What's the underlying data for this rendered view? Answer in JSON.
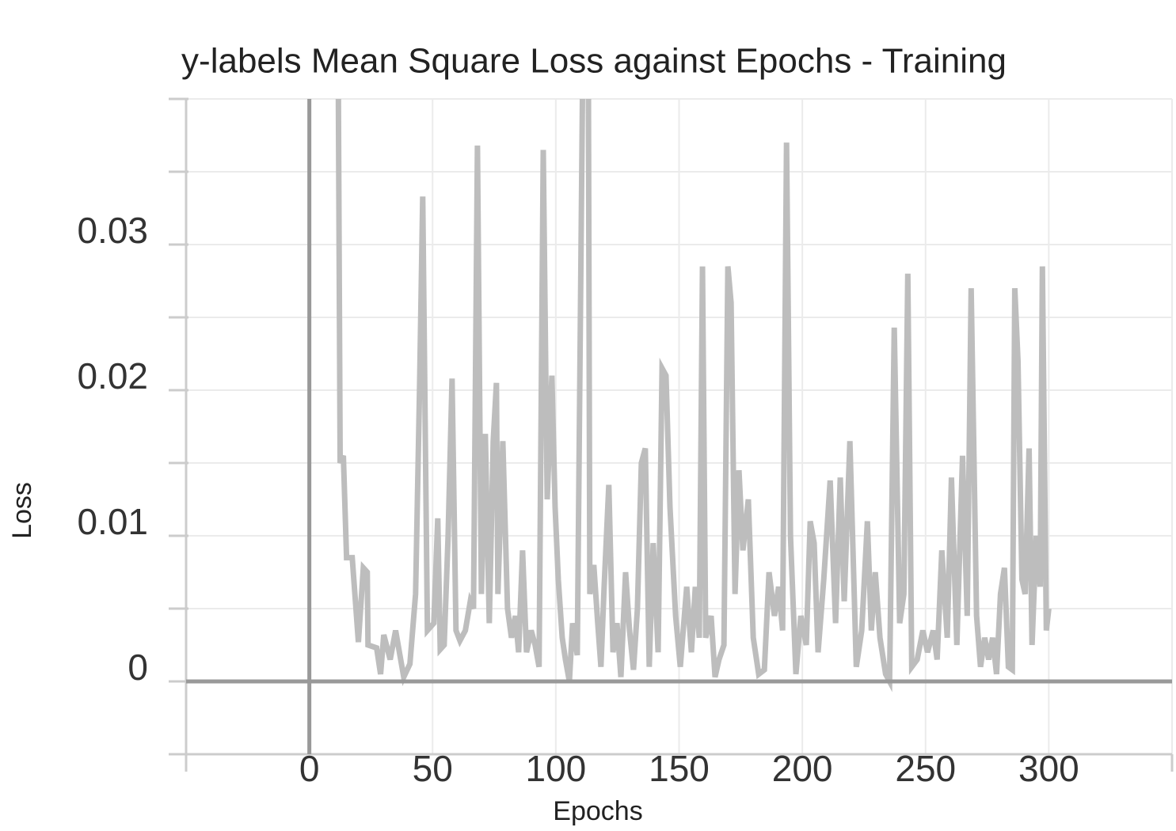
{
  "chart_data": {
    "type": "line",
    "title": "y-labels Mean Square Loss against Epochs - Training",
    "xlabel": "Epochs",
    "ylabel": "Loss",
    "color": "#bdbdbd",
    "grid": true,
    "zero_lines": true,
    "xlim": [
      -50,
      350
    ],
    "xticks": [
      0,
      50,
      100,
      150,
      200,
      250,
      300
    ],
    "x_minor_ticks": [
      -50,
      350
    ],
    "ylim": [
      -0.005,
      0.04
    ],
    "yticks": [
      0,
      0.01,
      0.02,
      0.03
    ],
    "y_minor_ticks": [
      -0.005,
      0.005,
      0.015,
      0.025,
      0.035,
      0.04
    ],
    "x": [
      11.5,
      12.5,
      13.8,
      15.1,
      17.4,
      19.9,
      21.9,
      23.5,
      23.8,
      27.3,
      28.9,
      30.2,
      32.8,
      35.0,
      38.3,
      40.8,
      43.1,
      44.7,
      46.0,
      47.9,
      50.5,
      52.1,
      53.1,
      54.7,
      56.3,
      57.9,
      59.5,
      61.1,
      63.3,
      65.3,
      66.6,
      68.2,
      69.8,
      71.4,
      73.0,
      74.6,
      75.9,
      76.5,
      78.5,
      80.4,
      82.0,
      83.6,
      84.9,
      86.5,
      88.1,
      90.0,
      91.6,
      93.2,
      94.9,
      96.5,
      98.4,
      99.7,
      101.0,
      102.6,
      103.9,
      105.5,
      106.8,
      108.7,
      110.9,
      113.2,
      113.8,
      115.4,
      117.0,
      118.3,
      119.6,
      121.5,
      123.2,
      124.8,
      126.4,
      128.3,
      129.9,
      131.5,
      133.1,
      134.7,
      136.3,
      137.9,
      139.5,
      141.5,
      143.1,
      144.7,
      146.3,
      148.6,
      150.5,
      153.1,
      155.0,
      156.6,
      158.2,
      159.5,
      160.8,
      163.0,
      164.6,
      166.2,
      168.2,
      169.8,
      171.1,
      172.7,
      174.3,
      175.9,
      178.1,
      180.1,
      182.3,
      184.6,
      186.5,
      188.7,
      190.4,
      192.0,
      193.6,
      195.2,
      197.4,
      199.4,
      201.6,
      203.2,
      204.8,
      206.4,
      208.7,
      211.3,
      213.5,
      215.4,
      217.0,
      219.3,
      221.9,
      224.1,
      226.4,
      228.0,
      229.6,
      231.5,
      233.8,
      235.4,
      237.3,
      239.5,
      241.2,
      242.8,
      244.4,
      246.6,
      248.9,
      250.8,
      253.1,
      254.7,
      256.6,
      258.8,
      260.5,
      262.7,
      265.0,
      266.9,
      268.5,
      270.7,
      272.3,
      274.0,
      275.6,
      277.2,
      278.8,
      280.4,
      282.0,
      283.6,
      285.2,
      286.2,
      287.5,
      289.1,
      290.4,
      292.0,
      293.2,
      294.9,
      296.5,
      297.4,
      299.0,
      300.0
    ],
    "values": [
      0.05,
      0.015,
      0.0155,
      0.0085,
      0.0085,
      0.0027,
      0.0078,
      0.0075,
      0.0025,
      0.0023,
      0.0005,
      0.0032,
      0.0015,
      0.0035,
      0.0003,
      0.0012,
      0.006,
      0.02,
      0.0333,
      0.0035,
      0.004,
      0.0112,
      0.0022,
      0.0025,
      0.01,
      0.0208,
      0.0035,
      0.0028,
      0.0035,
      0.0055,
      0.005,
      0.0368,
      0.006,
      0.017,
      0.004,
      0.0165,
      0.0205,
      0.006,
      0.0165,
      0.005,
      0.003,
      0.0045,
      0.002,
      0.009,
      0.002,
      0.0035,
      0.0025,
      0.001,
      0.0365,
      0.0125,
      0.021,
      0.012,
      0.007,
      0.003,
      0.0015,
      0.0,
      0.004,
      0.0018,
      0.042,
      0.042,
      0.006,
      0.008,
      0.004,
      0.001,
      0.0065,
      0.0135,
      0.002,
      0.004,
      0.0003,
      0.0075,
      0.0035,
      0.0008,
      0.005,
      0.015,
      0.016,
      0.001,
      0.0095,
      0.002,
      0.0215,
      0.021,
      0.012,
      0.0045,
      0.001,
      0.0065,
      0.002,
      0.0065,
      0.003,
      0.0285,
      0.003,
      0.0045,
      0.0003,
      0.0015,
      0.0025,
      0.0285,
      0.026,
      0.006,
      0.0145,
      0.009,
      0.0125,
      0.003,
      0.0005,
      0.0008,
      0.0075,
      0.0045,
      0.0065,
      0.0035,
      0.037,
      0.01,
      0.0005,
      0.0045,
      0.0025,
      0.011,
      0.0095,
      0.002,
      0.007,
      0.0138,
      0.004,
      0.014,
      0.0055,
      0.0165,
      0.001,
      0.0035,
      0.011,
      0.0035,
      0.0075,
      0.003,
      0.0005,
      0.0,
      0.0243,
      0.004,
      0.006,
      0.028,
      0.001,
      0.0015,
      0.0035,
      0.002,
      0.0035,
      0.0015,
      0.009,
      0.003,
      0.014,
      0.0025,
      0.0155,
      0.0045,
      0.027,
      0.0045,
      0.001,
      0.003,
      0.0015,
      0.003,
      0.0005,
      0.006,
      0.0078,
      0.001,
      0.0008,
      0.027,
      0.022,
      0.007,
      0.006,
      0.016,
      0.0025,
      0.01,
      0.0065,
      0.0285,
      0.0035,
      0.005
    ]
  }
}
